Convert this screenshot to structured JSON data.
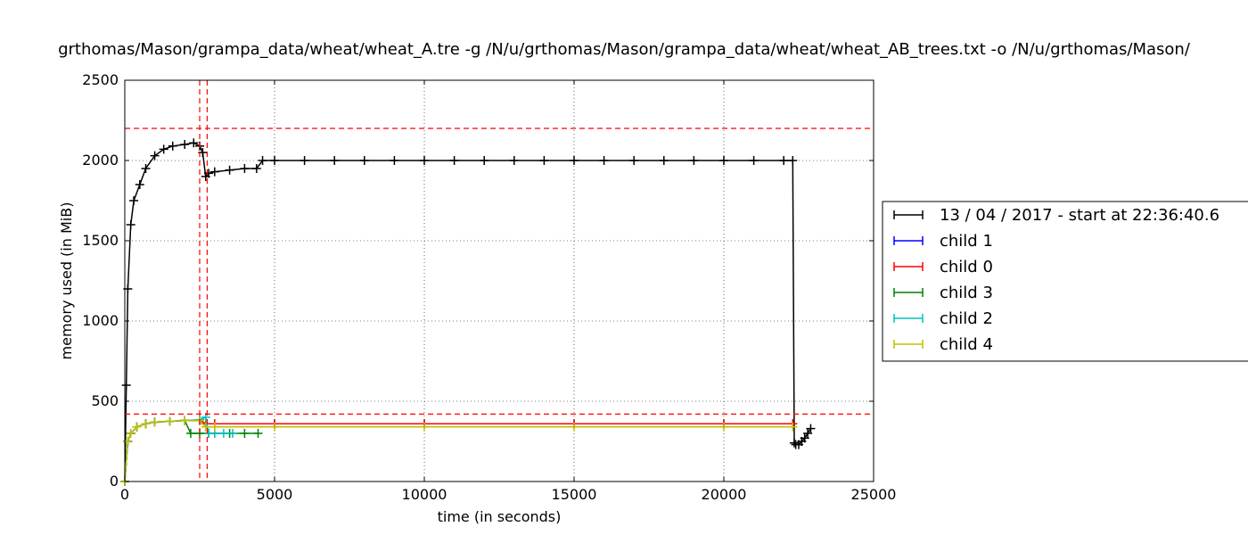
{
  "chart_data": {
    "type": "line",
    "title": "grthomas/Mason/grampa_data/wheat/wheat_A.tre -g /N/u/grthomas/Mason/grampa_data/wheat/wheat_AB_trees.txt -o /N/u/grthomas/Mason/",
    "xlabel": "time (in seconds)",
    "ylabel": "memory used (in MiB)",
    "xlim": [
      0,
      25000
    ],
    "ylim": [
      0,
      2500
    ],
    "xticks": [
      0,
      5000,
      10000,
      15000,
      20000,
      25000
    ],
    "yticks": [
      0,
      500,
      1000,
      1500,
      2000,
      2500
    ],
    "grid": true,
    "legend_position": "right",
    "marker": "+",
    "series": [
      {
        "name": "13 / 04 / 2017 - start at 22:36:40.6",
        "color": "#000000",
        "x": [
          0,
          50,
          100,
          200,
          300,
          500,
          700,
          1000,
          1300,
          1600,
          2000,
          2300,
          2500,
          2600,
          2700,
          2800,
          3000,
          3500,
          4000,
          4400,
          4600,
          5000,
          6000,
          7000,
          8000,
          9000,
          10000,
          11000,
          12000,
          13000,
          14000,
          15000,
          16000,
          17000,
          18000,
          19000,
          20000,
          21000,
          22000,
          22300,
          22350,
          22400,
          22500,
          22600,
          22700,
          22800,
          22900
        ],
        "y": [
          0,
          600,
          1200,
          1600,
          1750,
          1850,
          1950,
          2030,
          2070,
          2090,
          2100,
          2110,
          2090,
          2050,
          1900,
          1920,
          1930,
          1940,
          1950,
          1950,
          2000,
          2000,
          2000,
          2000,
          2000,
          2000,
          2000,
          2000,
          2000,
          2000,
          2000,
          2000,
          2000,
          2000,
          2000,
          2000,
          2000,
          2000,
          2000,
          2000,
          240,
          230,
          230,
          250,
          270,
          300,
          330
        ]
      },
      {
        "name": "child 1",
        "color": "#0000ff",
        "x": [
          0,
          100,
          200,
          400,
          700,
          1000,
          1500,
          2000,
          2500,
          2700,
          3000,
          5000,
          10000,
          15000,
          20000,
          22300
        ],
        "y": [
          0,
          250,
          300,
          340,
          360,
          370,
          375,
          380,
          380,
          360,
          360,
          360,
          360,
          360,
          360,
          360
        ]
      },
      {
        "name": "child 0",
        "color": "#ff0000",
        "x": [
          0,
          100,
          200,
          400,
          700,
          1000,
          1500,
          2000,
          2500,
          2700,
          3000,
          5000,
          10000,
          15000,
          20000,
          22300
        ],
        "y": [
          0,
          250,
          300,
          340,
          360,
          370,
          375,
          380,
          380,
          360,
          360,
          360,
          360,
          360,
          360,
          360
        ]
      },
      {
        "name": "child 3",
        "color": "#008000",
        "x": [
          0,
          100,
          200,
          400,
          700,
          1000,
          1500,
          2000,
          2200,
          2500,
          2800,
          3000,
          3500,
          4000,
          4450
        ],
        "y": [
          0,
          250,
          300,
          340,
          360,
          370,
          375,
          380,
          300,
          300,
          300,
          300,
          300,
          300,
          300
        ]
      },
      {
        "name": "child 2",
        "color": "#00bfbf",
        "x": [
          0,
          100,
          200,
          400,
          700,
          1000,
          1500,
          2000,
          2500,
          2700,
          2800,
          3000,
          3300,
          3600
        ],
        "y": [
          0,
          250,
          300,
          340,
          360,
          370,
          375,
          380,
          385,
          400,
          300,
          300,
          300,
          300
        ]
      },
      {
        "name": "child 4",
        "color": "#bfbf00",
        "x": [
          0,
          100,
          200,
          400,
          700,
          1000,
          1500,
          2000,
          2500,
          2700,
          3000,
          5000,
          10000,
          15000,
          20000,
          22300
        ],
        "y": [
          0,
          250,
          300,
          340,
          360,
          370,
          375,
          380,
          380,
          340,
          340,
          340,
          340,
          340,
          340,
          340
        ]
      }
    ],
    "reference_lines": {
      "color": "#ff0000",
      "horizontal": [
        2200,
        420
      ],
      "vertical": [
        2500,
        2750
      ]
    }
  }
}
